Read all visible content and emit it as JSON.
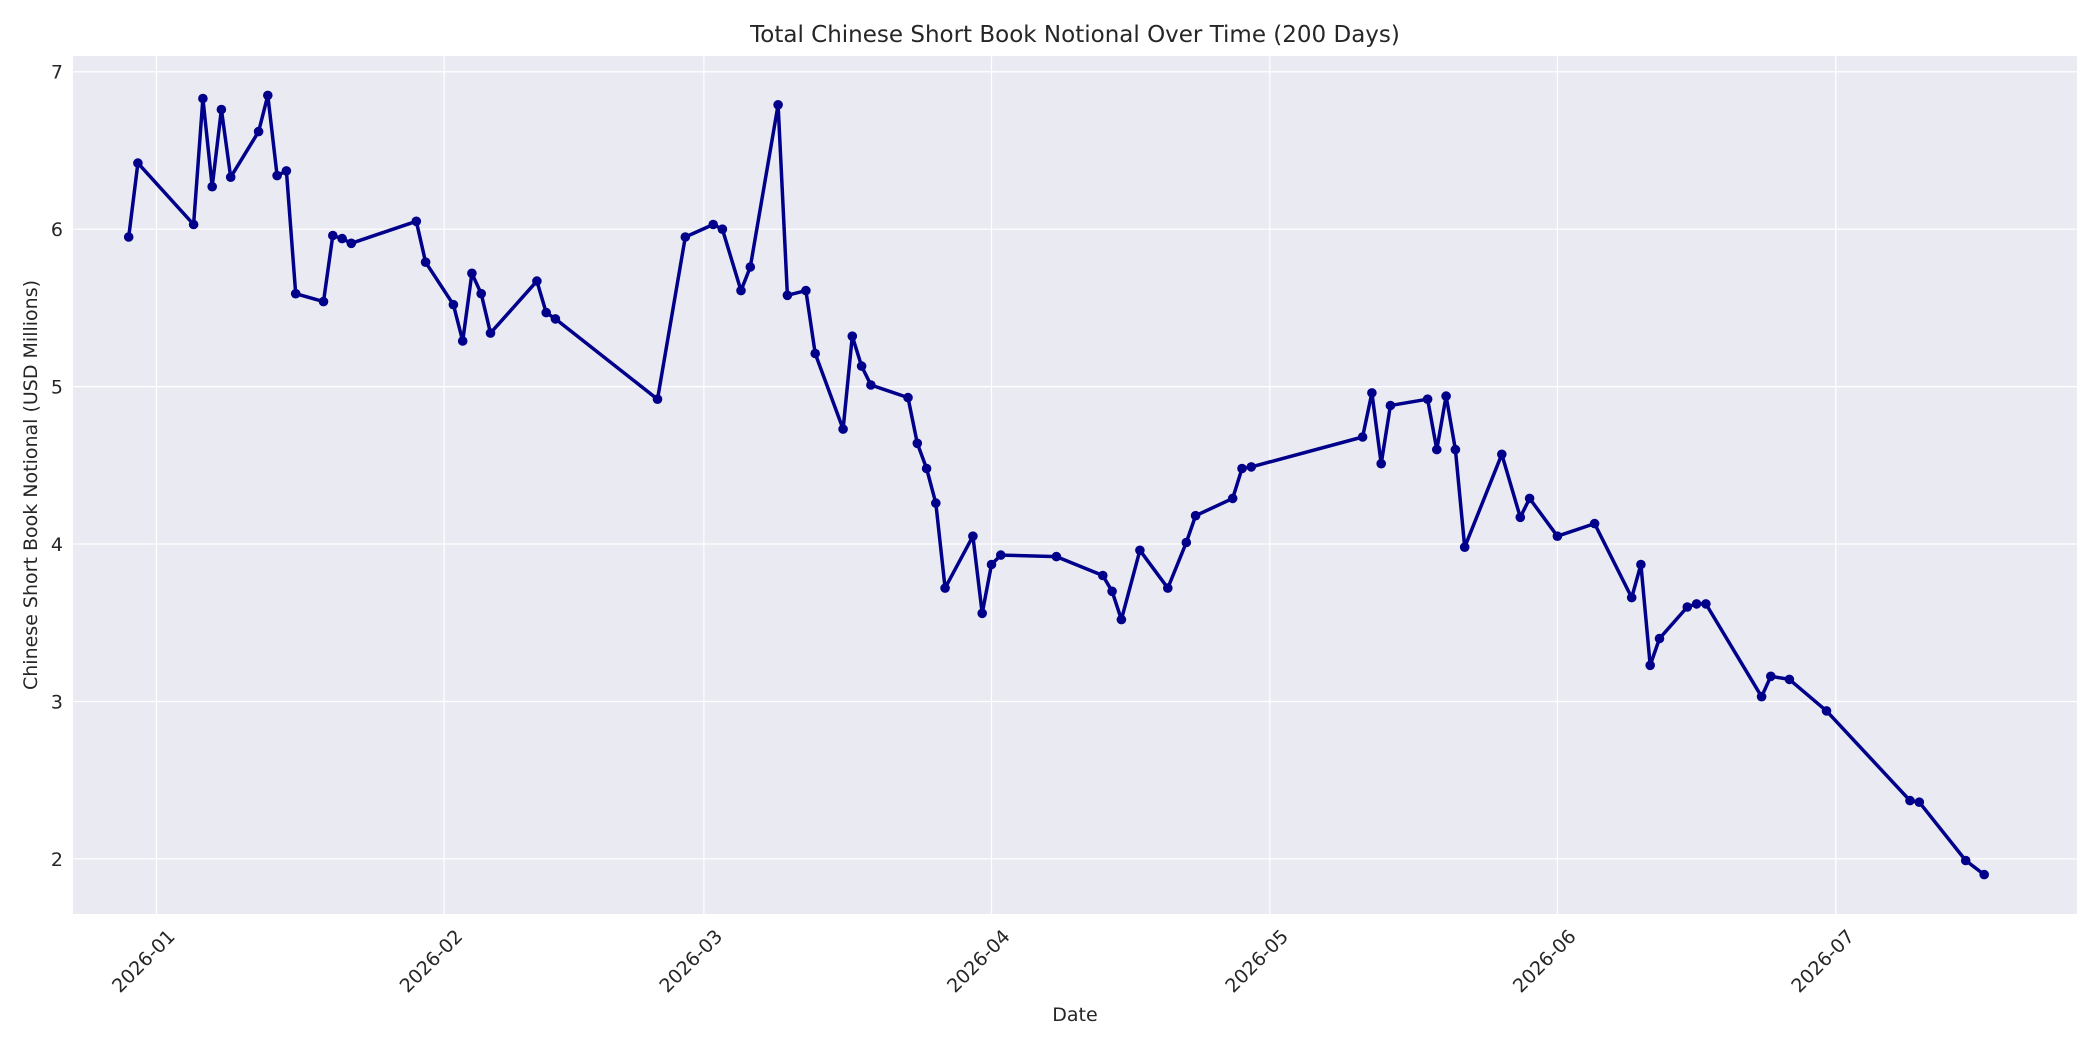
{
  "chart_data": {
    "type": "line",
    "title": "Total Chinese Short Book Notional Over Time (200 Days)",
    "xlabel": "Date",
    "ylabel": "Chinese Short Book Notional (USD Millions)",
    "xlim": [
      "2025-12-23",
      "2026-07-27"
    ],
    "ylim": [
      1.65,
      7.1
    ],
    "x_ticks": [
      "2026-01-01",
      "2026-02-01",
      "2026-03-01",
      "2026-04-01",
      "2026-05-01",
      "2026-06-01",
      "2026-07-01"
    ],
    "x_tick_labels": [
      "2026-01",
      "2026-02",
      "2026-03",
      "2026-04",
      "2026-05",
      "2026-06",
      "2026-07"
    ],
    "y_ticks": [
      2,
      3,
      4,
      5,
      6,
      7
    ],
    "y_tick_labels": [
      "2",
      "3",
      "4",
      "5",
      "6",
      "7"
    ],
    "grid": true,
    "colors": {
      "line": "#00008b",
      "plot_bg": "#eaeaf2",
      "grid": "#ffffff",
      "page_bg": "#ffffff"
    },
    "series": [
      {
        "x": [
          "2025-12-29",
          "2025-12-30",
          "2026-01-05",
          "2026-01-06",
          "2026-01-07",
          "2026-01-08",
          "2026-01-09",
          "2026-01-12",
          "2026-01-13",
          "2026-01-14",
          "2026-01-15",
          "2026-01-16",
          "2026-01-19",
          "2026-01-20",
          "2026-01-21",
          "2026-01-22",
          "2026-01-29",
          "2026-01-30",
          "2026-02-02",
          "2026-02-03",
          "2026-02-04",
          "2026-02-05",
          "2026-02-06",
          "2026-02-11",
          "2026-02-12",
          "2026-02-13",
          "2026-02-24",
          "2026-02-27",
          "2026-03-02",
          "2026-03-03",
          "2026-03-05",
          "2026-03-06",
          "2026-03-09",
          "2026-03-10",
          "2026-03-12",
          "2026-03-13",
          "2026-03-16",
          "2026-03-17",
          "2026-03-18",
          "2026-03-19",
          "2026-03-23",
          "2026-03-24",
          "2026-03-25",
          "2026-03-26",
          "2026-03-27",
          "2026-03-30",
          "2026-03-31",
          "2026-04-01",
          "2026-04-02",
          "2026-04-08",
          "2026-04-13",
          "2026-04-14",
          "2026-04-15",
          "2026-04-17",
          "2026-04-20",
          "2026-04-22",
          "2026-04-23",
          "2026-04-27",
          "2026-04-28",
          "2026-04-29",
          "2026-05-11",
          "2026-05-12",
          "2026-05-13",
          "2026-05-14",
          "2026-05-18",
          "2026-05-19",
          "2026-05-20",
          "2026-05-21",
          "2026-05-22",
          "2026-05-26",
          "2026-05-28",
          "2026-05-29",
          "2026-06-01",
          "2026-06-05",
          "2026-06-09",
          "2026-06-10",
          "2026-06-11",
          "2026-06-12",
          "2026-06-15",
          "2026-06-16",
          "2026-06-17",
          "2026-06-23",
          "2026-06-24",
          "2026-06-26",
          "2026-06-30",
          "2026-07-09",
          "2026-07-10",
          "2026-07-15",
          "2026-07-17"
        ],
        "values": [
          5.95,
          6.42,
          6.03,
          6.83,
          6.27,
          6.76,
          6.33,
          6.62,
          6.85,
          6.34,
          6.37,
          5.59,
          5.54,
          5.96,
          5.94,
          5.91,
          6.05,
          5.79,
          5.52,
          5.29,
          5.72,
          5.59,
          5.34,
          5.67,
          5.47,
          5.43,
          4.92,
          5.95,
          6.03,
          6.0,
          5.61,
          5.76,
          6.79,
          5.58,
          5.61,
          5.21,
          4.73,
          5.32,
          5.13,
          5.01,
          4.93,
          4.64,
          4.48,
          4.26,
          3.72,
          4.05,
          3.56,
          3.87,
          3.93,
          3.92,
          3.8,
          3.7,
          3.52,
          3.96,
          3.72,
          4.01,
          4.18,
          4.29,
          4.48,
          4.49,
          4.68,
          4.96,
          4.51,
          4.88,
          4.92,
          4.6,
          4.94,
          4.6,
          3.98,
          4.57,
          4.17,
          4.29,
          4.05,
          4.13,
          3.66,
          3.87,
          3.23,
          3.4,
          3.6,
          3.62,
          3.62,
          3.03,
          3.16,
          3.14,
          2.94,
          2.37,
          2.36,
          1.99,
          1.9
        ]
      }
    ]
  }
}
